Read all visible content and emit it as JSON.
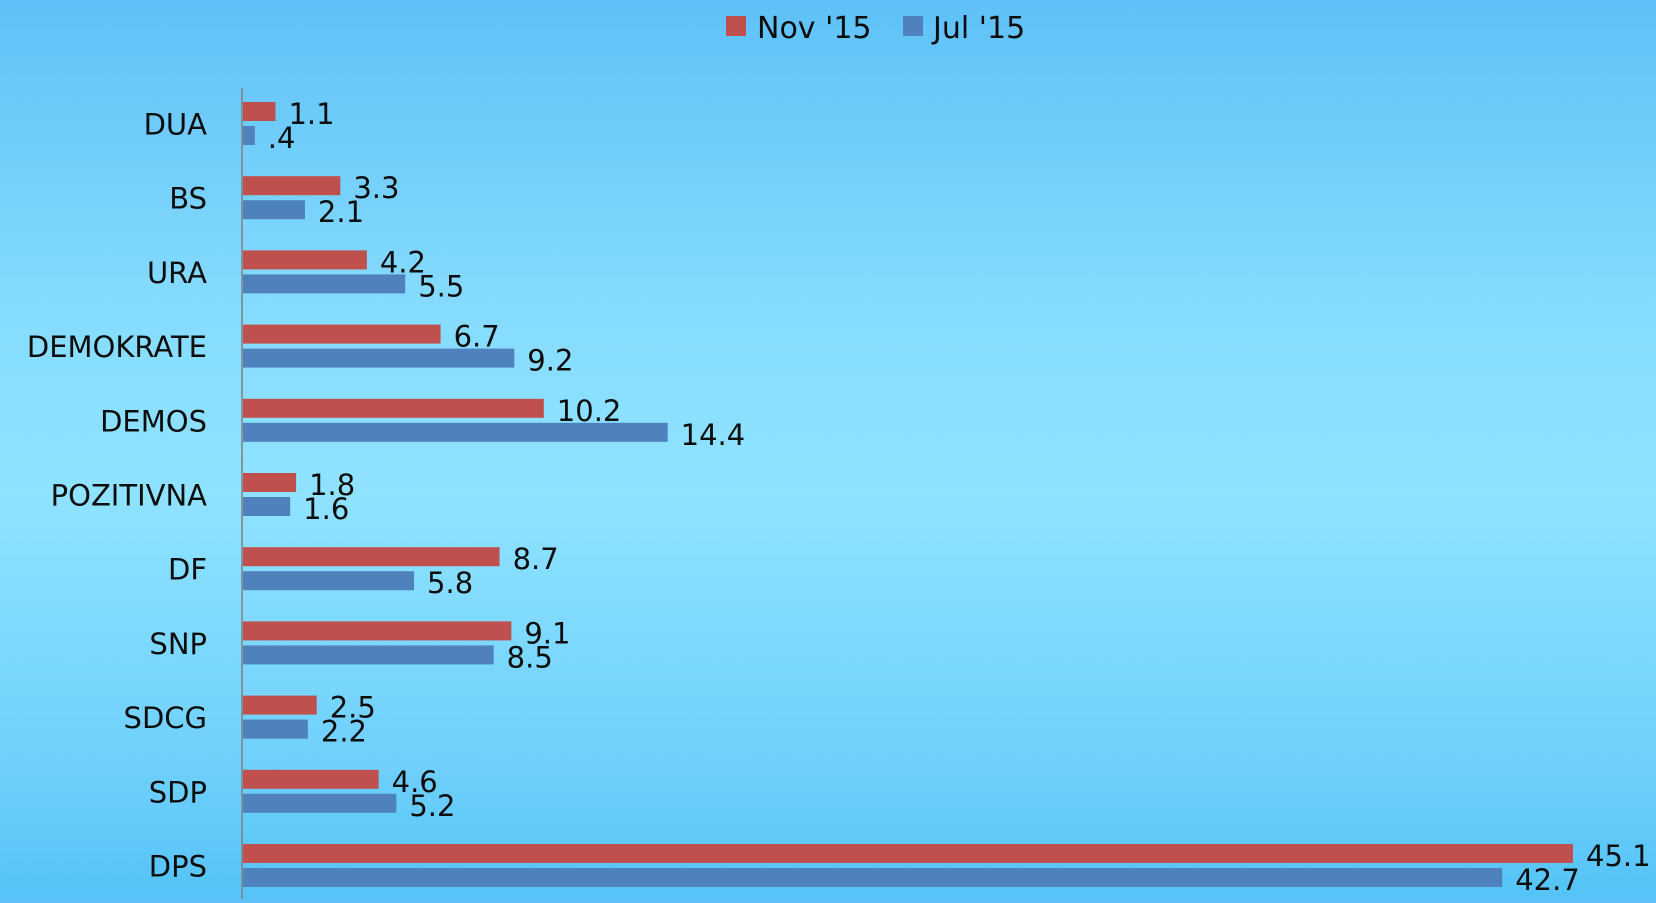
{
  "chart_data": {
    "type": "bar",
    "orientation": "horizontal",
    "categories": [
      "DUA",
      "BS",
      "URA",
      "DEMOKRATE",
      "DEMOS",
      "POZITIVNA",
      "DF",
      "SNP",
      "SDCG",
      "SDP",
      "DPS"
    ],
    "series": [
      {
        "name": "Nov '15",
        "color": "#c0504d",
        "values": [
          1.1,
          3.3,
          4.2,
          6.7,
          10.2,
          1.8,
          8.7,
          9.1,
          2.5,
          4.6,
          45.1
        ],
        "labels": [
          "1.1",
          "3.3",
          "4.2",
          "6.7",
          "10.2",
          "1.8",
          "8.7",
          "9.1",
          "2.5",
          "4.6",
          "45.1"
        ]
      },
      {
        "name": "Jul '15",
        "color": "#4f81bd",
        "values": [
          0.4,
          2.1,
          5.5,
          9.2,
          14.4,
          1.6,
          5.8,
          8.5,
          2.2,
          5.2,
          42.7
        ],
        "labels": [
          ".4",
          "2.1",
          "5.5",
          "9.2",
          "14.4",
          "1.6",
          "5.8",
          "8.5",
          "2.2",
          "5.2",
          "42.7"
        ]
      }
    ],
    "title": "",
    "xlabel": "",
    "ylabel": "",
    "xlim": [
      0,
      45.1
    ],
    "grid": false,
    "legend_position": "top"
  }
}
